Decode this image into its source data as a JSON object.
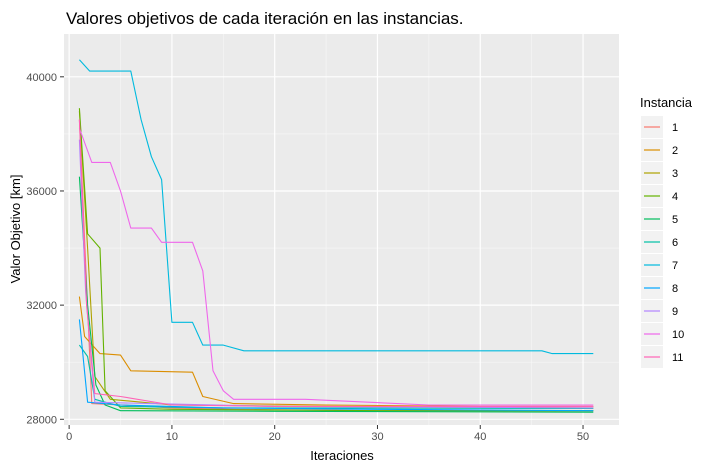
{
  "chart_data": {
    "type": "line",
    "title": "Valores objetivos de cada iteración en las instancias.",
    "xlabel": "Iteraciones",
    "ylabel": "Valor Objetivo [km]",
    "xlim": [
      -0.5,
      53.5
    ],
    "ylim": [
      27800,
      41500
    ],
    "xticks": [
      0,
      10,
      20,
      30,
      40,
      50
    ],
    "yticks": [
      28000,
      32000,
      36000,
      40000
    ],
    "xtick_labels": [
      "0",
      "10",
      "20",
      "30",
      "40",
      "50"
    ],
    "ytick_labels": [
      "28000",
      "32000",
      "36000",
      "40000"
    ],
    "grid": true,
    "legend": {
      "title": "Instancia",
      "position": "right"
    },
    "series": [
      {
        "name": "1",
        "color": "#F8766D",
        "points": [
          [
            1,
            38500
          ],
          [
            1.6,
            33500
          ],
          [
            2.2,
            28550
          ],
          [
            5,
            28500
          ],
          [
            10,
            28400
          ],
          [
            16,
            28350
          ],
          [
            30,
            28300
          ],
          [
            51,
            28300
          ]
        ]
      },
      {
        "name": "2",
        "color": "#DB8E00",
        "points": [
          [
            1,
            32300
          ],
          [
            1.5,
            30900
          ],
          [
            3,
            30300
          ],
          [
            5,
            30250
          ],
          [
            6,
            29700
          ],
          [
            12,
            29650
          ],
          [
            13,
            28800
          ],
          [
            16,
            28550
          ],
          [
            25,
            28500
          ],
          [
            40,
            28450
          ],
          [
            51,
            28450
          ]
        ]
      },
      {
        "name": "3",
        "color": "#AEA200",
        "points": [
          [
            1,
            38800
          ],
          [
            1.8,
            34000
          ],
          [
            2.5,
            29500
          ],
          [
            4,
            28700
          ],
          [
            10,
            28500
          ],
          [
            25,
            28450
          ],
          [
            51,
            28400
          ]
        ]
      },
      {
        "name": "4",
        "color": "#64B200",
        "points": [
          [
            1,
            38900
          ],
          [
            1.8,
            34500
          ],
          [
            3,
            34000
          ],
          [
            3.5,
            29000
          ],
          [
            5,
            28400
          ],
          [
            10,
            28350
          ],
          [
            30,
            28300
          ],
          [
            51,
            28300
          ]
        ]
      },
      {
        "name": "5",
        "color": "#00BD5C",
        "points": [
          [
            1,
            36500
          ],
          [
            1.8,
            32000
          ],
          [
            2.6,
            29200
          ],
          [
            3.5,
            28500
          ],
          [
            5,
            28300
          ],
          [
            20,
            28280
          ],
          [
            51,
            28250
          ]
        ]
      },
      {
        "name": "6",
        "color": "#00C1A7",
        "points": [
          [
            1,
            30600
          ],
          [
            1.8,
            30200
          ],
          [
            2.5,
            28700
          ],
          [
            5,
            28450
          ],
          [
            15,
            28400
          ],
          [
            51,
            28380
          ]
        ]
      },
      {
        "name": "7",
        "color": "#00BADE",
        "points": [
          [
            1,
            40600
          ],
          [
            2,
            40200
          ],
          [
            6,
            40200
          ],
          [
            7,
            38500
          ],
          [
            8,
            37200
          ],
          [
            9,
            36400
          ],
          [
            10,
            31400
          ],
          [
            12,
            31400
          ],
          [
            13,
            30600
          ],
          [
            15,
            30600
          ],
          [
            17,
            30400
          ],
          [
            46,
            30400
          ],
          [
            47,
            30300
          ],
          [
            51,
            30300
          ]
        ]
      },
      {
        "name": "8",
        "color": "#00A6FF",
        "points": [
          [
            1,
            31500
          ],
          [
            1.8,
            28600
          ],
          [
            5,
            28500
          ],
          [
            15,
            28400
          ],
          [
            30,
            28350
          ],
          [
            51,
            28300
          ]
        ]
      },
      {
        "name": "9",
        "color": "#B385FF",
        "points": [
          [
            1,
            37800
          ],
          [
            1.6,
            32500
          ],
          [
            2.5,
            28600
          ],
          [
            8,
            28550
          ],
          [
            20,
            28450
          ],
          [
            51,
            28400
          ]
        ]
      },
      {
        "name": "10",
        "color": "#EF67EB",
        "points": [
          [
            1,
            38200
          ],
          [
            2.2,
            37000
          ],
          [
            4,
            37000
          ],
          [
            5,
            36000
          ],
          [
            6,
            34700
          ],
          [
            8,
            34700
          ],
          [
            9,
            34200
          ],
          [
            12,
            34200
          ],
          [
            13,
            33200
          ],
          [
            14,
            29700
          ],
          [
            15,
            29000
          ],
          [
            16,
            28700
          ],
          [
            23,
            28700
          ],
          [
            35,
            28500
          ],
          [
            51,
            28500
          ]
        ]
      },
      {
        "name": "11",
        "color": "#FF63B6",
        "points": [
          [
            1,
            38500
          ],
          [
            1.7,
            32000
          ],
          [
            2.5,
            28900
          ],
          [
            5,
            28800
          ],
          [
            10,
            28500
          ],
          [
            20,
            28450
          ],
          [
            51,
            28450
          ]
        ]
      }
    ]
  }
}
